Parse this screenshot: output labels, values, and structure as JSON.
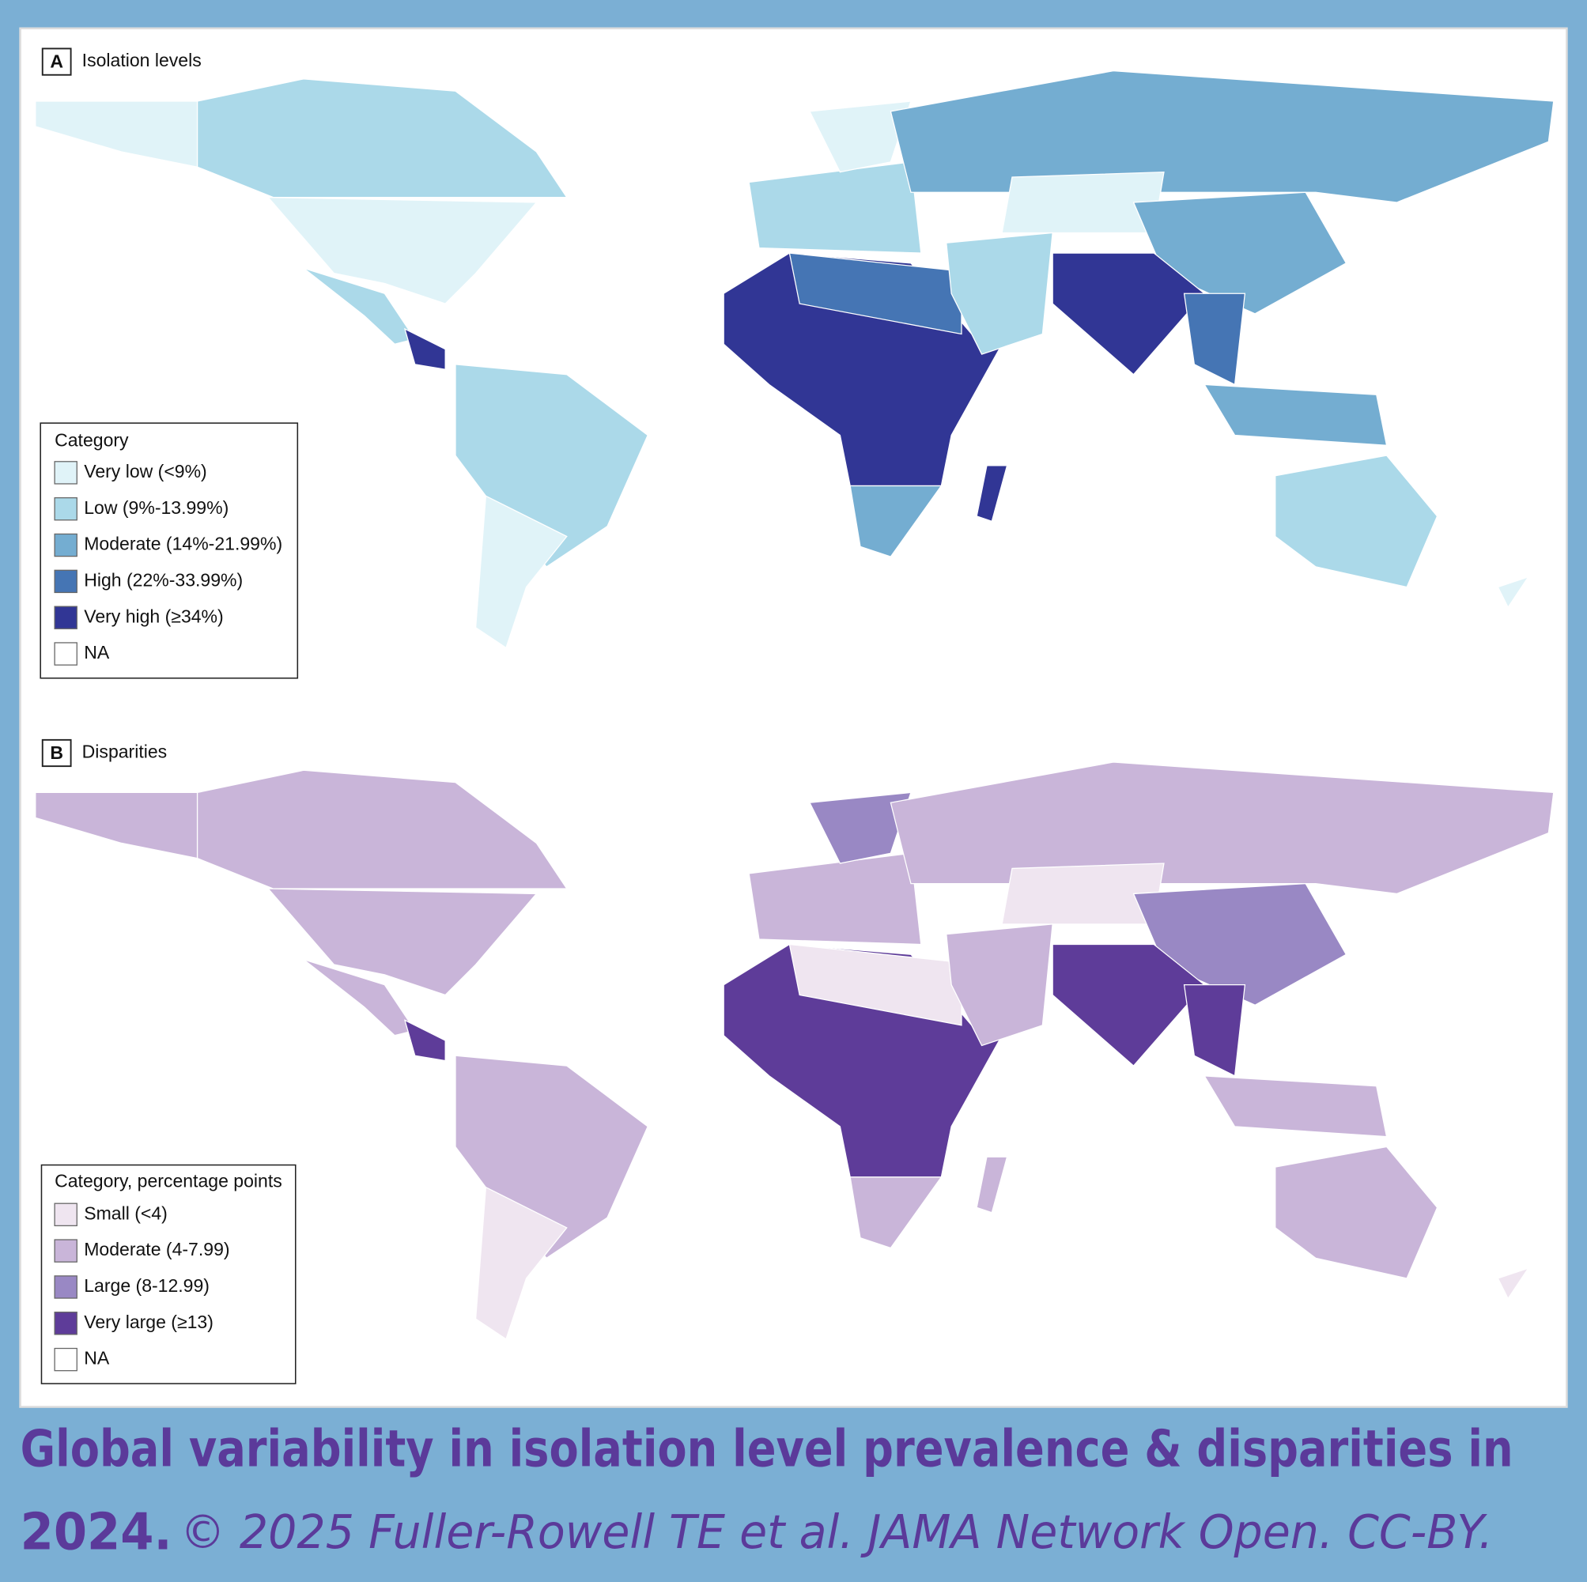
{
  "panels": [
    {
      "label": "A",
      "title": "Isolation levels",
      "legend": {
        "title": "Category",
        "items": [
          {
            "label": "Very low (<9%)",
            "color": "#e0f3f8"
          },
          {
            "label": "Low (9%-13.99%)",
            "color": "#abd9e9"
          },
          {
            "label": "Moderate (14%-21.99%)",
            "color": "#74add1"
          },
          {
            "label": "High (22%-33.99%)",
            "color": "#4575b4"
          },
          {
            "label": "Very high (≥34%)",
            "color": "#313695"
          },
          {
            "label": "NA",
            "color": "#ffffff"
          }
        ]
      }
    },
    {
      "label": "B",
      "title": "Disparities",
      "legend": {
        "title": "Category, percentage points",
        "items": [
          {
            "label": "Small (<4)",
            "color": "#efe5f0"
          },
          {
            "label": "Moderate (4-7.99)",
            "color": "#c9b5d9"
          },
          {
            "label": "Large (8-12.99)",
            "color": "#9988c4"
          },
          {
            "label": "Very large (≥13)",
            "color": "#5e3c99"
          },
          {
            "label": "NA",
            "color": "#ffffff"
          }
        ]
      }
    }
  ],
  "caption": {
    "title": [
      "Global variability in isolation level prevalence & disparities in",
      "2024."
    ],
    "credit": "© 2025 Fuller-Rowell TE et al. JAMA Network Open. CC-BY."
  }
}
